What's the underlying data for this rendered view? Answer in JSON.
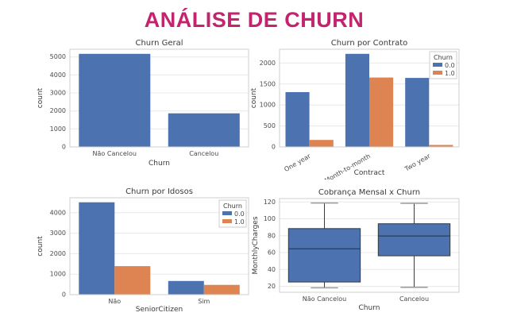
{
  "page": {
    "title": "ANÁLISE DE CHURN",
    "title_color": "#C2246E",
    "background": "#ffffff"
  },
  "palette": {
    "churn_no_blue": "#4c72b0",
    "churn_yes_orange": "#dd8452",
    "gridline": "#e8e8e8",
    "spine": "#cfcfcf",
    "tick_text": "#4a4a4a"
  },
  "chart_data": [
    {
      "type": "bar",
      "title": "Churn Geral",
      "xlabel": "Churn",
      "ylabel": "count",
      "categories": [
        "Não Cancelou",
        "Cancelou"
      ],
      "values": [
        5174,
        1869
      ],
      "bar_color": "#4c72b0",
      "ylim": [
        0,
        5430
      ],
      "yticks": [
        0,
        1000,
        2000,
        3000,
        4000,
        5000
      ],
      "grid": true,
      "legend": null
    },
    {
      "type": "bar",
      "title": "Churn por Contrato",
      "xlabel": "Contract",
      "ylabel": "count",
      "categories": [
        "One year",
        "Month-to-month",
        "Two year"
      ],
      "series": [
        {
          "name": "0.0",
          "values": [
            1307,
            2220,
            1647
          ],
          "color": "#4c72b0"
        },
        {
          "name": "1.0",
          "values": [
            166,
            1655,
            48
          ],
          "color": "#dd8452"
        }
      ],
      "legend": {
        "title": "Churn",
        "position": "upper-right"
      },
      "ylim": [
        0,
        2330
      ],
      "yticks": [
        0,
        500,
        1000,
        1500,
        2000
      ],
      "xtick_rotation": 30,
      "grid": true
    },
    {
      "type": "bar",
      "title": "Churn por Idosos",
      "xlabel": "SeniorCitizen",
      "ylabel": "count",
      "categories": [
        "Não",
        "Sim"
      ],
      "series": [
        {
          "name": "0.0",
          "values": [
            4508,
            666
          ],
          "color": "#4c72b0"
        },
        {
          "name": "1.0",
          "values": [
            1393,
            476
          ],
          "color": "#dd8452"
        }
      ],
      "legend": {
        "title": "Churn",
        "position": "upper-right"
      },
      "ylim": [
        0,
        4730
      ],
      "yticks": [
        0,
        1000,
        2000,
        3000,
        4000
      ],
      "grid": true
    },
    {
      "type": "box",
      "title": "Cobrança Mensal x Churn",
      "xlabel": "Churn",
      "ylabel": "MonthlyCharges",
      "categories": [
        "Não Cancelou",
        "Cancelou"
      ],
      "boxes": [
        {
          "whisker_low": 18.25,
          "q1": 25.1,
          "median": 64.45,
          "q3": 88.4,
          "whisker_high": 118.75
        },
        {
          "whisker_low": 18.85,
          "q1": 56.15,
          "median": 79.65,
          "q3": 94.2,
          "whisker_high": 118.35
        }
      ],
      "box_color": "#4c72b0",
      "ylim": [
        13,
        124
      ],
      "yticks": [
        20,
        40,
        60,
        80,
        100,
        120
      ],
      "grid": true,
      "legend": null
    }
  ]
}
